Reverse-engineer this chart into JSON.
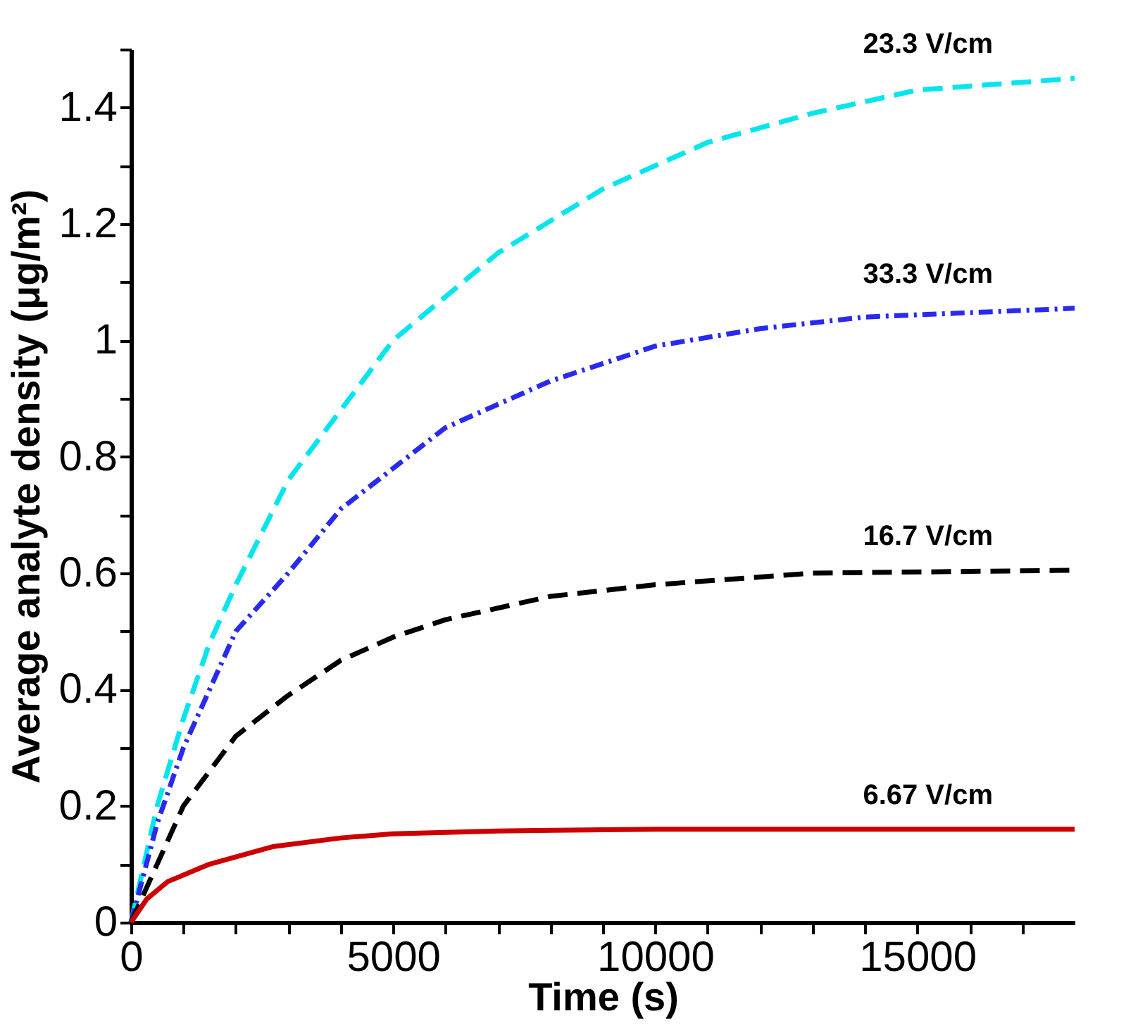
{
  "chart_data": {
    "type": "line",
    "xlabel": "Time (s)",
    "ylabel": "Average analyte density (μg/m²)",
    "xlim": [
      0,
      18000
    ],
    "ylim": [
      0,
      1.5
    ],
    "xticks": [
      0,
      {
        "value": 1000,
        "label": null
      },
      {
        "value": 2000,
        "label": null
      },
      {
        "value": 3000,
        "label": null
      },
      {
        "value": 4000,
        "label": null
      },
      5000,
      {
        "value": 6000,
        "label": null
      },
      {
        "value": 7000,
        "label": null
      },
      {
        "value": 8000,
        "label": null
      },
      {
        "value": 9000,
        "label": null
      },
      10000,
      {
        "value": 11000,
        "label": null
      },
      {
        "value": 12000,
        "label": null
      },
      {
        "value": 13000,
        "label": null
      },
      {
        "value": 14000,
        "label": null
      },
      15000,
      {
        "value": 16000,
        "label": null
      },
      {
        "value": 17000,
        "label": null
      }
    ],
    "yticks": [
      0,
      {
        "value": 0.1,
        "label": null
      },
      0.2,
      {
        "value": 0.3,
        "label": null
      },
      0.4,
      {
        "value": 0.5,
        "label": null
      },
      0.6,
      {
        "value": 0.7,
        "label": null
      },
      0.8,
      {
        "value": 0.9,
        "label": null
      },
      1,
      {
        "value": 1.1,
        "label": null
      },
      1.2,
      {
        "value": 1.3,
        "label": null
      },
      1.4,
      {
        "value": 1.5,
        "label": null
      }
    ],
    "grid": false,
    "legend": false,
    "marker": "none",
    "series": [
      {
        "name": "23.3 V/cm",
        "color": "#00e5ee",
        "line_style": "dashed",
        "x": [
          0,
          500,
          1000,
          1500,
          2000,
          3000,
          4000,
          5000,
          7000,
          9000,
          11000,
          13000,
          15000,
          18000
        ],
        "values": [
          0,
          0.2,
          0.35,
          0.48,
          0.58,
          0.76,
          0.88,
          1.0,
          1.15,
          1.26,
          1.34,
          1.39,
          1.43,
          1.45
        ]
      },
      {
        "name": "33.3 V/cm",
        "color": "#2a2aee",
        "line_style": "dashdot",
        "x": [
          0,
          500,
          1000,
          2000,
          3000,
          4000,
          5000,
          6000,
          8000,
          10000,
          12000,
          14000,
          18000
        ],
        "values": [
          0,
          0.17,
          0.3,
          0.5,
          0.6,
          0.71,
          0.78,
          0.85,
          0.93,
          0.99,
          1.02,
          1.04,
          1.055
        ]
      },
      {
        "name": "16.7 V/cm",
        "color": "#000000",
        "line_style": "dashed",
        "x": [
          0,
          500,
          1000,
          2000,
          3000,
          4000,
          5000,
          6000,
          8000,
          10000,
          13000,
          18000
        ],
        "values": [
          0,
          0.1,
          0.2,
          0.32,
          0.39,
          0.45,
          0.49,
          0.52,
          0.56,
          0.58,
          0.6,
          0.605
        ]
      },
      {
        "name": "6.67 V/cm",
        "color": "#cc0000",
        "line_style": "solid",
        "x": [
          0,
          300,
          700,
          1500,
          2700,
          4000,
          5000,
          7000,
          10000,
          18000
        ],
        "values": [
          0,
          0.04,
          0.07,
          0.1,
          0.13,
          0.145,
          0.152,
          0.157,
          0.16,
          0.16
        ]
      }
    ]
  }
}
